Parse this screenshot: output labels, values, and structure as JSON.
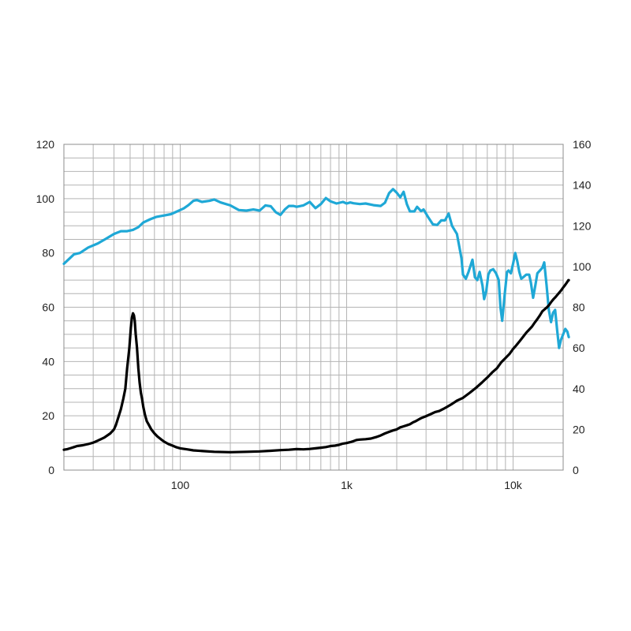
{
  "chart_data": {
    "type": "line",
    "title": "",
    "xlabel": "",
    "ylabel": "",
    "y2label": "",
    "x_scale": "log",
    "xlim": [
      20,
      20000
    ],
    "ylim": [
      0,
      120
    ],
    "y2lim": [
      0,
      160
    ],
    "grid": true,
    "x_tick_labels": [
      {
        "value": 100,
        "label": "100"
      },
      {
        "value": 1000,
        "label": "1k"
      },
      {
        "value": 10000,
        "label": "10k"
      }
    ],
    "y_ticks": [
      "0",
      "20",
      "40",
      "60",
      "80",
      "100",
      "120"
    ],
    "y2_ticks": [
      "0",
      "20",
      "40",
      "60",
      "80",
      "100",
      "120",
      "140",
      "160"
    ],
    "colors": {
      "response": "#1fa8d6",
      "impedance": "#000000",
      "grid": "#b4b4b4"
    },
    "series": [
      {
        "axis": "left",
        "color": "#1fa8d6",
        "points": [
          [
            20,
            76
          ],
          [
            23,
            79.5
          ],
          [
            25,
            80
          ],
          [
            28,
            82
          ],
          [
            32,
            83.5
          ],
          [
            36,
            85.3
          ],
          [
            40,
            87
          ],
          [
            44,
            88
          ],
          [
            48,
            88
          ],
          [
            52,
            88.5
          ],
          [
            56,
            89.5
          ],
          [
            60,
            91.2
          ],
          [
            66,
            92.4
          ],
          [
            72,
            93.3
          ],
          [
            80,
            93.8
          ],
          [
            88,
            94.3
          ],
          [
            95,
            95.2
          ],
          [
            105,
            96.4
          ],
          [
            112,
            97.6
          ],
          [
            120,
            99.2
          ],
          [
            126,
            99.5
          ],
          [
            135,
            98.8
          ],
          [
            150,
            99.2
          ],
          [
            160,
            99.7
          ],
          [
            175,
            98.6
          ],
          [
            200,
            97.5
          ],
          [
            225,
            95.8
          ],
          [
            250,
            95.6
          ],
          [
            275,
            96
          ],
          [
            300,
            95.6
          ],
          [
            325,
            97.5
          ],
          [
            350,
            97.2
          ],
          [
            375,
            95
          ],
          [
            400,
            94
          ],
          [
            425,
            96
          ],
          [
            450,
            97.3
          ],
          [
            480,
            97.3
          ],
          [
            500,
            97
          ],
          [
            550,
            97.5
          ],
          [
            600,
            98.8
          ],
          [
            650,
            96.5
          ],
          [
            700,
            98
          ],
          [
            750,
            100.2
          ],
          [
            800,
            99
          ],
          [
            870,
            98.2
          ],
          [
            950,
            98.8
          ],
          [
            1000,
            98.2
          ],
          [
            1050,
            98.6
          ],
          [
            1100,
            98.3
          ],
          [
            1200,
            98
          ],
          [
            1300,
            98.2
          ],
          [
            1450,
            97.6
          ],
          [
            1600,
            97.3
          ],
          [
            1700,
            98.5
          ],
          [
            1800,
            102
          ],
          [
            1900,
            103.5
          ],
          [
            2000,
            102.2
          ],
          [
            2100,
            100.5
          ],
          [
            2200,
            102.5
          ],
          [
            2300,
            98
          ],
          [
            2400,
            95.3
          ],
          [
            2550,
            95.3
          ],
          [
            2650,
            97
          ],
          [
            2800,
            95.4
          ],
          [
            2900,
            96
          ],
          [
            3100,
            93
          ],
          [
            3300,
            90.5
          ],
          [
            3500,
            90.3
          ],
          [
            3700,
            92
          ],
          [
            3900,
            92
          ],
          [
            4100,
            94.5
          ],
          [
            4300,
            90
          ],
          [
            4600,
            87
          ],
          [
            4900,
            78
          ],
          [
            5000,
            72
          ],
          [
            5200,
            70.5
          ],
          [
            5400,
            73
          ],
          [
            5700,
            77.5
          ],
          [
            5900,
            71
          ],
          [
            6100,
            70
          ],
          [
            6300,
            73
          ],
          [
            6550,
            68
          ],
          [
            6700,
            63
          ],
          [
            6900,
            66
          ],
          [
            7100,
            72
          ],
          [
            7300,
            73.5
          ],
          [
            7600,
            74
          ],
          [
            7900,
            72.5
          ],
          [
            8200,
            70
          ],
          [
            8400,
            60
          ],
          [
            8600,
            55
          ],
          [
            8900,
            64.5
          ],
          [
            9200,
            73
          ],
          [
            9400,
            73.5
          ],
          [
            9700,
            72.5
          ],
          [
            10000,
            76
          ],
          [
            10300,
            80
          ],
          [
            10600,
            77
          ],
          [
            10900,
            73
          ],
          [
            11200,
            70.5
          ],
          [
            11500,
            71
          ],
          [
            12000,
            72
          ],
          [
            12500,
            72
          ],
          [
            12800,
            69
          ],
          [
            13200,
            63.5
          ],
          [
            13600,
            68
          ],
          [
            14000,
            72.5
          ],
          [
            14500,
            73.5
          ],
          [
            15000,
            74.5
          ],
          [
            15400,
            76.5
          ],
          [
            15900,
            68
          ],
          [
            16400,
            59
          ],
          [
            16900,
            54.5
          ],
          [
            17400,
            58
          ],
          [
            17900,
            59
          ],
          [
            18400,
            51.5
          ],
          [
            18900,
            45
          ],
          [
            19400,
            48
          ],
          [
            20000,
            50
          ],
          [
            20600,
            52
          ],
          [
            21200,
            51
          ],
          [
            21600,
            49
          ]
        ]
      },
      {
        "axis": "right",
        "color": "#000000",
        "points": [
          [
            20,
            10
          ],
          [
            21,
            10.3
          ],
          [
            22,
            10.8
          ],
          [
            23,
            11.3
          ],
          [
            24,
            11.8
          ],
          [
            26,
            12.2
          ],
          [
            28,
            12.8
          ],
          [
            30,
            13.5
          ],
          [
            32,
            14.5
          ],
          [
            35,
            16
          ],
          [
            38,
            18
          ],
          [
            40,
            20
          ],
          [
            41,
            22
          ],
          [
            42.5,
            26
          ],
          [
            44,
            30
          ],
          [
            45.5,
            35
          ],
          [
            46.8,
            40
          ],
          [
            48,
            50
          ],
          [
            49.5,
            60
          ],
          [
            50.5,
            70
          ],
          [
            51.3,
            75
          ],
          [
            52,
            77
          ],
          [
            52.7,
            76
          ],
          [
            53.3,
            73.5
          ],
          [
            54,
            67
          ],
          [
            55,
            60
          ],
          [
            56,
            50
          ],
          [
            57,
            43
          ],
          [
            58,
            38
          ],
          [
            59,
            35
          ],
          [
            60,
            31
          ],
          [
            61.5,
            27
          ],
          [
            63,
            24
          ],
          [
            65,
            22
          ],
          [
            67,
            20
          ],
          [
            70,
            18
          ],
          [
            73,
            16.5
          ],
          [
            77,
            15
          ],
          [
            80,
            14
          ],
          [
            85,
            12.8
          ],
          [
            90,
            12
          ],
          [
            95,
            11.2
          ],
          [
            100,
            10.7
          ],
          [
            110,
            10.2
          ],
          [
            120,
            9.7
          ],
          [
            140,
            9.3
          ],
          [
            160,
            9
          ],
          [
            200,
            8.8
          ],
          [
            250,
            9
          ],
          [
            300,
            9.2
          ],
          [
            350,
            9.5
          ],
          [
            400,
            9.8
          ],
          [
            450,
            10
          ],
          [
            500,
            10.3
          ],
          [
            550,
            10.2
          ],
          [
            600,
            10.4
          ],
          [
            650,
            10.7
          ],
          [
            700,
            11
          ],
          [
            750,
            11.3
          ],
          [
            800,
            11.8
          ],
          [
            850,
            12
          ],
          [
            900,
            12.4
          ],
          [
            950,
            13
          ],
          [
            1000,
            13.3
          ],
          [
            1050,
            13.7
          ],
          [
            1100,
            14.2
          ],
          [
            1150,
            14.8
          ],
          [
            1200,
            15
          ],
          [
            1300,
            15.2
          ],
          [
            1400,
            15.5
          ],
          [
            1500,
            16.2
          ],
          [
            1600,
            17
          ],
          [
            1700,
            18
          ],
          [
            1800,
            18.8
          ],
          [
            1900,
            19.5
          ],
          [
            2000,
            20
          ],
          [
            2100,
            21
          ],
          [
            2200,
            21.5
          ],
          [
            2300,
            22
          ],
          [
            2400,
            22.5
          ],
          [
            2500,
            23.4
          ],
          [
            2600,
            24
          ],
          [
            2700,
            24.8
          ],
          [
            2800,
            25.5
          ],
          [
            3000,
            26.5
          ],
          [
            3200,
            27.5
          ],
          [
            3400,
            28.5
          ],
          [
            3600,
            29
          ],
          [
            3800,
            30
          ],
          [
            4000,
            31
          ],
          [
            4300,
            32.5
          ],
          [
            4600,
            34.1
          ],
          [
            5000,
            35.5
          ],
          [
            5500,
            38
          ],
          [
            6000,
            40.5
          ],
          [
            6500,
            43
          ],
          [
            7000,
            45.5
          ],
          [
            7500,
            48
          ],
          [
            8000,
            50
          ],
          [
            8500,
            53
          ],
          [
            9000,
            55
          ],
          [
            9500,
            57
          ],
          [
            10000,
            59.5
          ],
          [
            10500,
            61.5
          ],
          [
            11000,
            63.5
          ],
          [
            11500,
            65.5
          ],
          [
            12000,
            67.5
          ],
          [
            12500,
            69
          ],
          [
            13000,
            70.5
          ],
          [
            13500,
            72.5
          ],
          [
            14000,
            74.2
          ],
          [
            14500,
            76
          ],
          [
            15000,
            78
          ],
          [
            15500,
            79
          ],
          [
            16000,
            80
          ],
          [
            16500,
            81.2
          ],
          [
            17000,
            82.7
          ],
          [
            17500,
            84
          ],
          [
            18000,
            85
          ],
          [
            18500,
            86.2
          ],
          [
            19000,
            87.3
          ],
          [
            19500,
            88.4
          ],
          [
            20000,
            89.7
          ],
          [
            20500,
            90.8
          ],
          [
            21000,
            92
          ],
          [
            21500,
            93.3
          ],
          [
            21600,
            93.3
          ]
        ]
      }
    ]
  }
}
